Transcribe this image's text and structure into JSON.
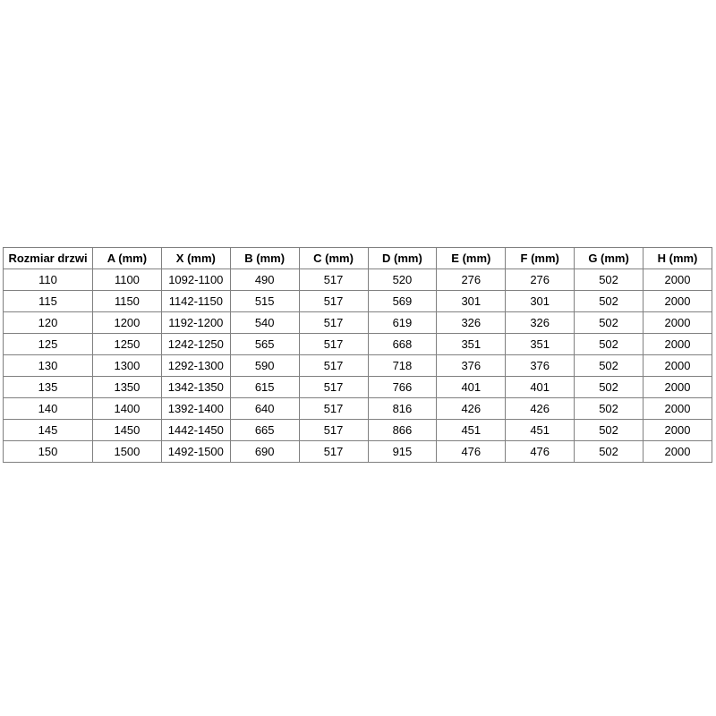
{
  "page": {
    "background": "#ffffff",
    "border_color": "#808080",
    "text_color": "#000000"
  },
  "table": {
    "headers": [
      "Rozmiar drzwi",
      "A (mm)",
      "X (mm)",
      "B (mm)",
      "C (mm)",
      "D (mm)",
      "E (mm)",
      "F (mm)",
      "G (mm)",
      "H (mm)"
    ],
    "rows": [
      [
        "110",
        "1100",
        "1092-1100",
        "490",
        "517",
        "520",
        "276",
        "276",
        "502",
        "2000"
      ],
      [
        "115",
        "1150",
        "1142-1150",
        "515",
        "517",
        "569",
        "301",
        "301",
        "502",
        "2000"
      ],
      [
        "120",
        "1200",
        "1192-1200",
        "540",
        "517",
        "619",
        "326",
        "326",
        "502",
        "2000"
      ],
      [
        "125",
        "1250",
        "1242-1250",
        "565",
        "517",
        "668",
        "351",
        "351",
        "502",
        "2000"
      ],
      [
        "130",
        "1300",
        "1292-1300",
        "590",
        "517",
        "718",
        "376",
        "376",
        "502",
        "2000"
      ],
      [
        "135",
        "1350",
        "1342-1350",
        "615",
        "517",
        "766",
        "401",
        "401",
        "502",
        "2000"
      ],
      [
        "140",
        "1400",
        "1392-1400",
        "640",
        "517",
        "816",
        "426",
        "426",
        "502",
        "2000"
      ],
      [
        "145",
        "1450",
        "1442-1450",
        "665",
        "517",
        "866",
        "451",
        "451",
        "502",
        "2000"
      ],
      [
        "150",
        "1500",
        "1492-1500",
        "690",
        "517",
        "915",
        "476",
        "476",
        "502",
        "2000"
      ]
    ]
  }
}
